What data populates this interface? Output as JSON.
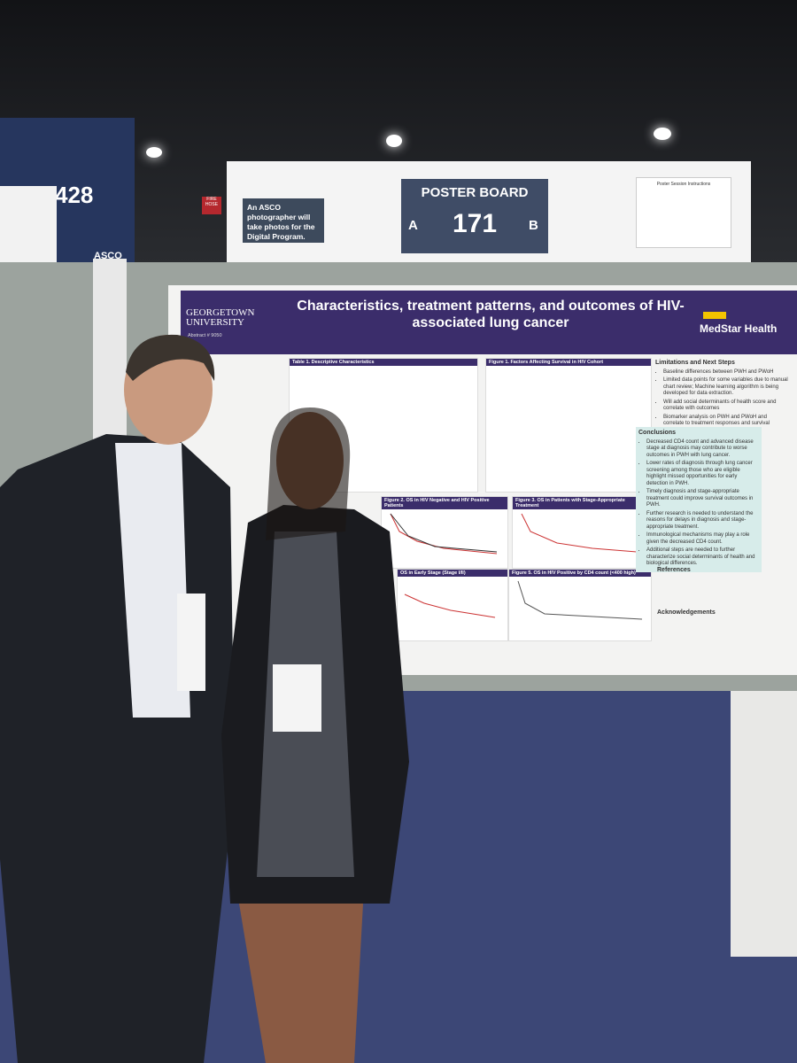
{
  "background_signs": {
    "left_board_number": "428",
    "left_board_org": "ASCO",
    "fire_hose": "FIRE HOSE"
  },
  "header_board": {
    "photographer_note": "An ASCO photographer will take photos for the Digital Program.",
    "poster_board_label": "POSTER BOARD",
    "side_a": "A",
    "board_number": "171",
    "side_b": "B",
    "instructions_title": "Poster Session Instructions"
  },
  "poster": {
    "institution": "GEORGETOWN UNIVERSITY",
    "abstract": "Abstract # 9050",
    "title": "Characteristics, treatment patterns, and outcomes of HIV-associated lung cancer",
    "partner": "MedStar Health",
    "table_title": "Table 1. Descriptive Characteristics",
    "figures": [
      "Figure 1. Factors Affecting Survival in HIV Cohort",
      "Figure 2. OS in HIV Negative and HIV Positive Patients",
      "Figure 3. OS in Patients with Stage-Appropriate Treatment",
      "OS in Early Stage (Stage I/II)",
      "Figure 5. OS in HIV Positive by CD4 count (<400 high)"
    ],
    "limitations": {
      "heading": "Limitations and Next Steps",
      "items": [
        "Baseline differences between PWH and PWoH",
        "Limited data points for some variables due to manual chart review; Machine learning algorithm is being developed for data extraction.",
        "Will add social determinants of health score and correlate with outcomes",
        "Biomarker analysis on PWH and PWoH and correlate to treatment responses and survival"
      ]
    },
    "conclusions": {
      "heading": "Conclusions",
      "items": [
        "Decreased CD4 count and advanced disease stage at diagnosis may contribute to worse outcomes in PWH with lung cancer.",
        "Lower rates of diagnosis through lung cancer screening among those who are eligible highlight missed opportunities for early detection in PWH.",
        "Timely diagnosis and stage-appropriate treatment could improve survival outcomes in PWH.",
        "Further research is needed to understand the reasons for delays in diagnosis and stage-appropriate treatment.",
        "Immunological mechanisms may play a role given the decreased CD4 count.",
        "Additional steps are needed to further characterize social determinants of health and biological differences."
      ]
    },
    "references_heading": "References",
    "acknowledgements_heading": "Acknowledgements"
  }
}
